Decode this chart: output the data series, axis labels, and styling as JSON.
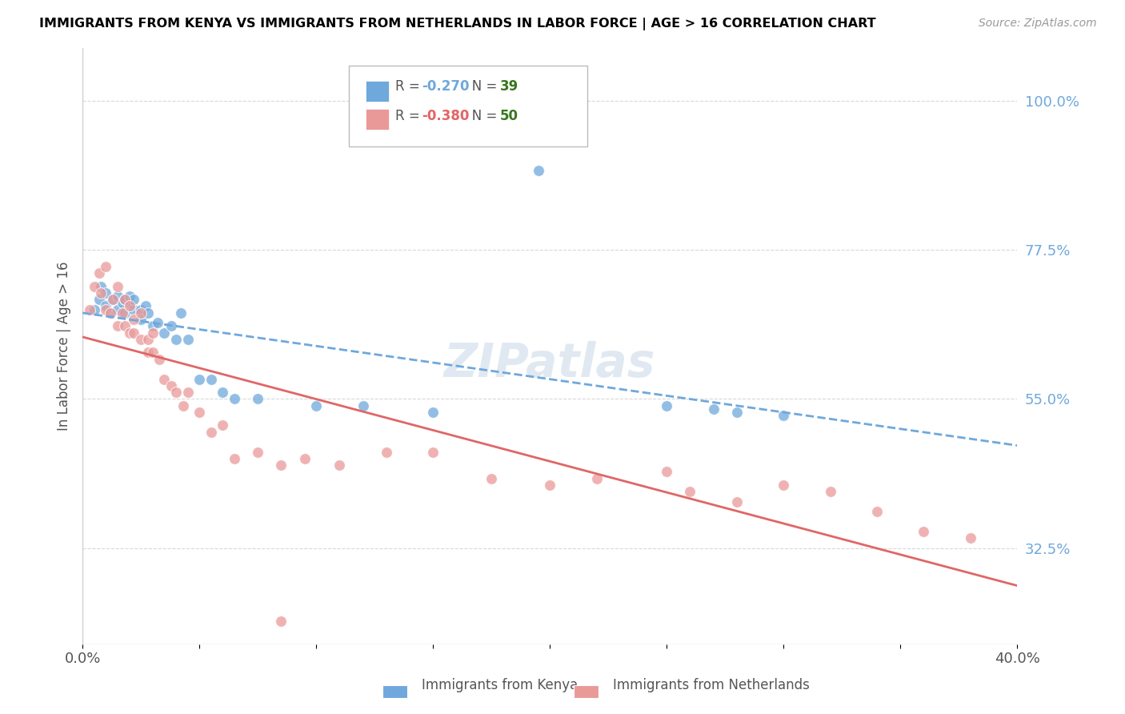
{
  "title": "IMMIGRANTS FROM KENYA VS IMMIGRANTS FROM NETHERLANDS IN LABOR FORCE | AGE > 16 CORRELATION CHART",
  "source": "Source: ZipAtlas.com",
  "ylabel": "In Labor Force | Age > 16",
  "ylabel_right_ticks": [
    "100.0%",
    "77.5%",
    "55.0%",
    "32.5%"
  ],
  "ylabel_right_vals": [
    1.0,
    0.775,
    0.55,
    0.325
  ],
  "xlim": [
    0.0,
    0.4
  ],
  "ylim": [
    0.18,
    1.08
  ],
  "kenya_color": "#6fa8dc",
  "netherlands_color": "#ea9999",
  "kenya_R": -0.27,
  "kenya_N": 39,
  "netherlands_R": -0.38,
  "netherlands_N": 50,
  "kenya_scatter_x": [
    0.005,
    0.007,
    0.008,
    0.01,
    0.01,
    0.012,
    0.013,
    0.015,
    0.015,
    0.017,
    0.018,
    0.018,
    0.02,
    0.02,
    0.022,
    0.022,
    0.025,
    0.025,
    0.027,
    0.028,
    0.03,
    0.032,
    0.035,
    0.038,
    0.04,
    0.042,
    0.045,
    0.05,
    0.055,
    0.06,
    0.065,
    0.075,
    0.1,
    0.12,
    0.15,
    0.25,
    0.27,
    0.28,
    0.3
  ],
  "kenya_scatter_y": [
    0.685,
    0.7,
    0.72,
    0.69,
    0.71,
    0.68,
    0.7,
    0.685,
    0.705,
    0.695,
    0.68,
    0.7,
    0.695,
    0.705,
    0.685,
    0.7,
    0.685,
    0.67,
    0.69,
    0.68,
    0.66,
    0.665,
    0.65,
    0.66,
    0.64,
    0.68,
    0.64,
    0.58,
    0.58,
    0.56,
    0.55,
    0.55,
    0.54,
    0.54,
    0.53,
    0.54,
    0.535,
    0.53,
    0.525
  ],
  "kenya_outlier_x": [
    0.195
  ],
  "kenya_outlier_y": [
    0.895
  ],
  "netherlands_scatter_x": [
    0.003,
    0.005,
    0.007,
    0.008,
    0.01,
    0.01,
    0.012,
    0.013,
    0.015,
    0.015,
    0.017,
    0.018,
    0.018,
    0.02,
    0.02,
    0.022,
    0.022,
    0.025,
    0.025,
    0.028,
    0.028,
    0.03,
    0.03,
    0.033,
    0.035,
    0.038,
    0.04,
    0.043,
    0.045,
    0.05,
    0.055,
    0.06,
    0.065,
    0.075,
    0.085,
    0.095,
    0.11,
    0.13,
    0.15,
    0.175,
    0.2,
    0.22,
    0.25,
    0.26,
    0.28,
    0.3,
    0.32,
    0.34,
    0.36,
    0.38
  ],
  "netherlands_scatter_y": [
    0.685,
    0.72,
    0.74,
    0.71,
    0.75,
    0.685,
    0.68,
    0.7,
    0.72,
    0.66,
    0.68,
    0.7,
    0.66,
    0.69,
    0.65,
    0.65,
    0.67,
    0.64,
    0.68,
    0.62,
    0.64,
    0.62,
    0.65,
    0.61,
    0.58,
    0.57,
    0.56,
    0.54,
    0.56,
    0.53,
    0.5,
    0.51,
    0.46,
    0.47,
    0.45,
    0.46,
    0.45,
    0.47,
    0.47,
    0.43,
    0.42,
    0.43,
    0.44,
    0.41,
    0.395,
    0.42,
    0.41,
    0.38,
    0.35,
    0.34
  ],
  "netherlands_outlier_x": [
    0.085
  ],
  "netherlands_outlier_y": [
    0.215
  ],
  "watermark": "ZIPatlas",
  "background_color": "#ffffff",
  "grid_color": "#d8d8d8",
  "kenya_line_color": "#6fa8dc",
  "netherlands_line_color": "#e06666",
  "kenya_R_color": "#6fa8dc",
  "netherlands_R_color": "#e06666",
  "N_color": "#38761d",
  "title_color": "#000000",
  "source_color": "#999999",
  "right_tick_color": "#6fa8dc"
}
